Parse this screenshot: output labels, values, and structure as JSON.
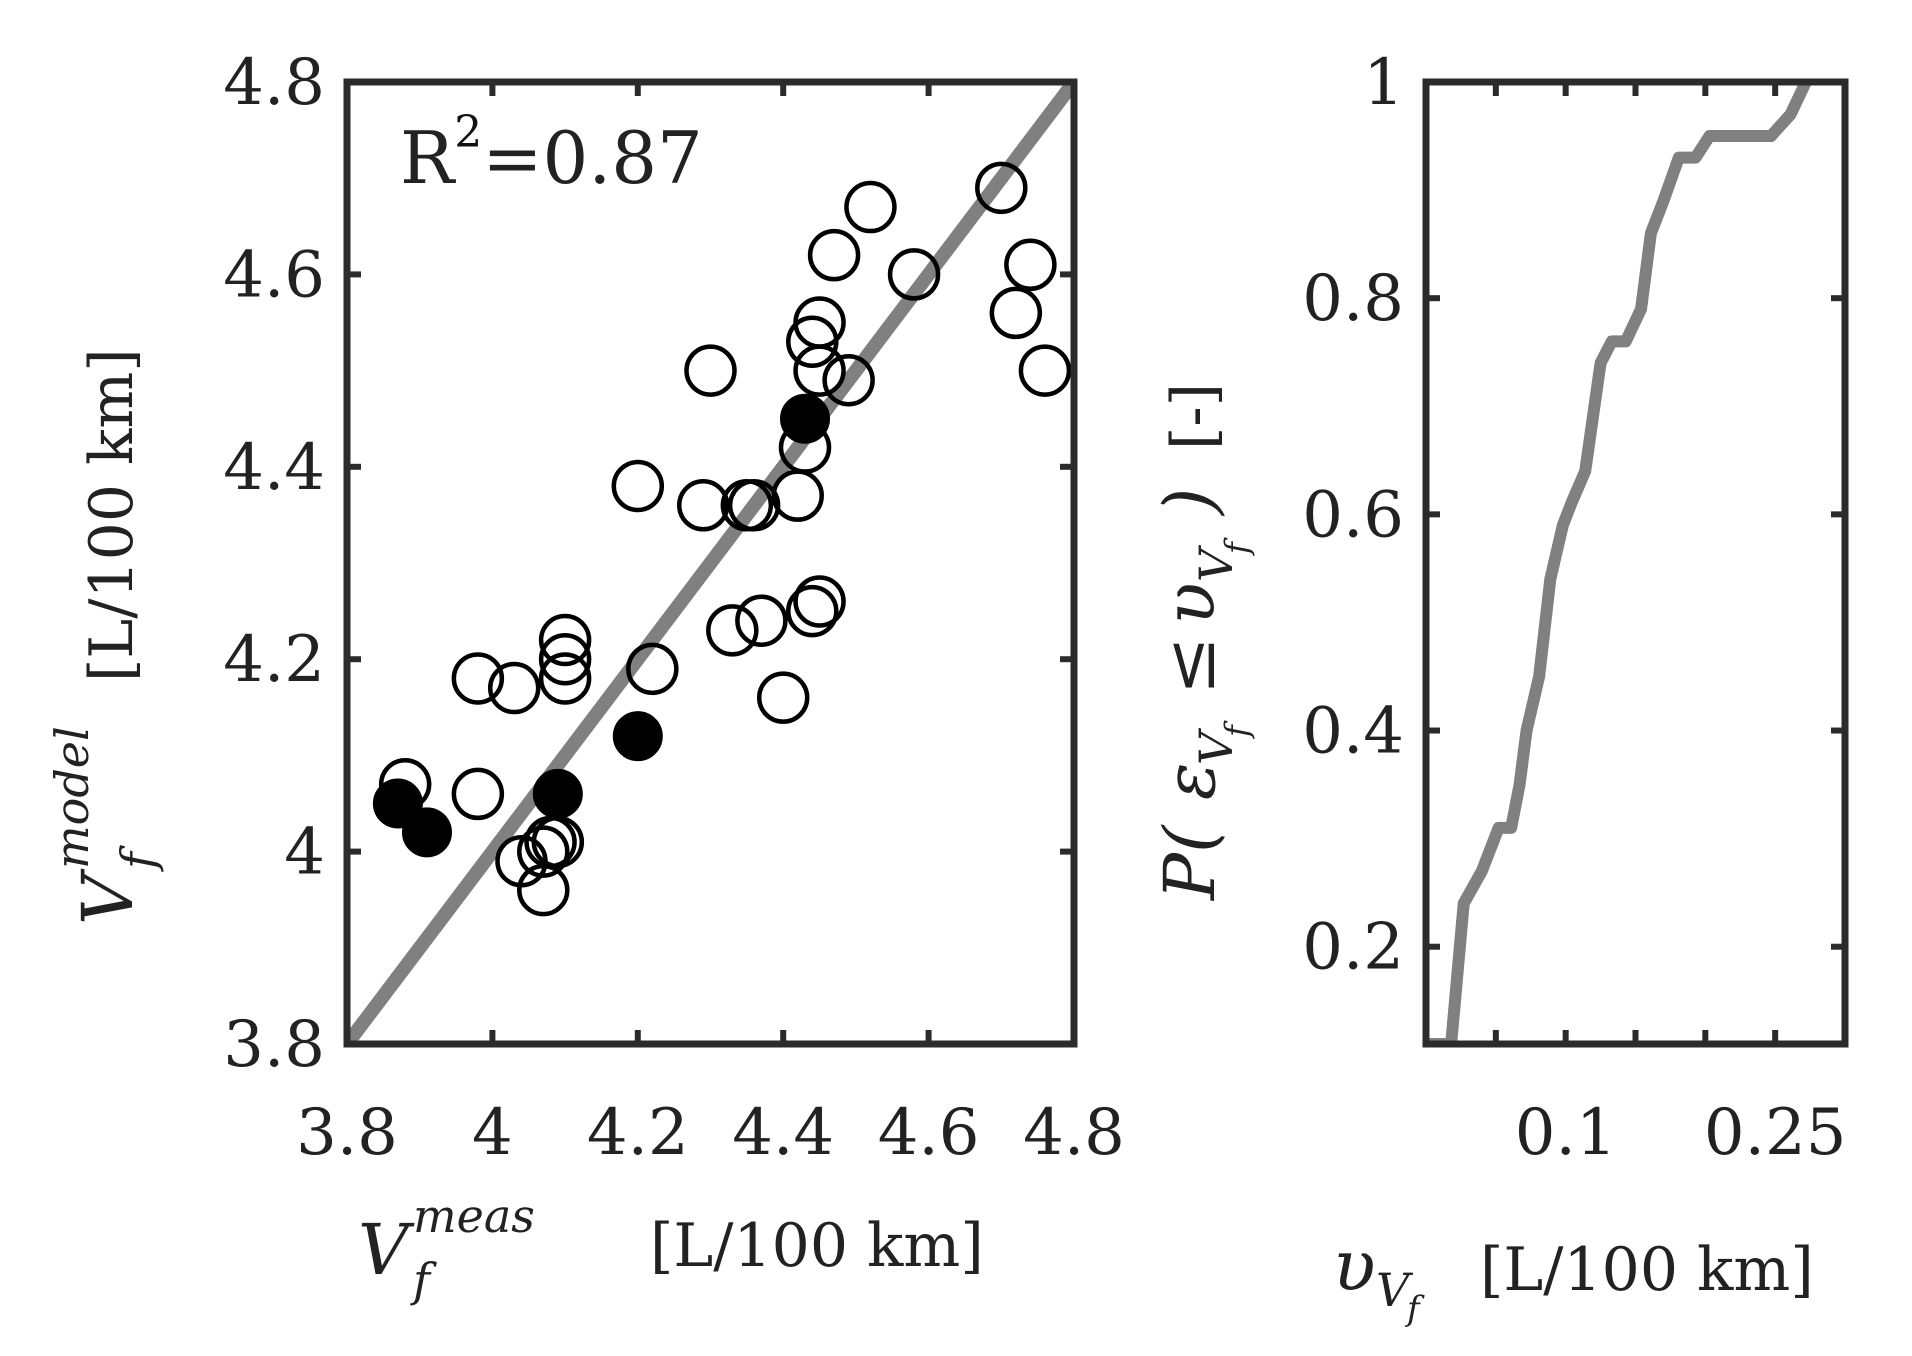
{
  "chart_data": [
    {
      "type": "scatter",
      "title": "",
      "xlabel": {
        "symbol": "V",
        "subscript": "f",
        "superscript": "meas",
        "units": "[L/100 km]"
      },
      "ylabel": {
        "symbol": "V",
        "subscript": "f",
        "superscript": "model",
        "units": "[L/100 km]"
      },
      "xlim": [
        3.8,
        4.8
      ],
      "ylim": [
        3.8,
        4.8
      ],
      "xticks": [
        "3.8",
        "4",
        "4.2",
        "4.4",
        "4.6",
        "4.8"
      ],
      "yticks": [
        "3.8",
        "4",
        "4.2",
        "4.4",
        "4.6",
        "4.8"
      ],
      "grid": false,
      "annotation": {
        "base": "R",
        "sup": "2",
        "rest": "=0.87"
      },
      "reference_line": {
        "label": "y = x",
        "from": [
          3.8,
          3.8
        ],
        "to": [
          4.8,
          4.8
        ],
        "color": "#808080"
      },
      "series": [
        {
          "name": "open",
          "marker": "open-circle",
          "points": [
            [
              3.88,
              4.07
            ],
            [
              3.98,
              4.18
            ],
            [
              4.03,
              4.17
            ],
            [
              3.98,
              4.06
            ],
            [
              4.04,
              3.99
            ],
            [
              4.07,
              3.96
            ],
            [
              4.07,
              4.0
            ],
            [
              4.08,
              4.01
            ],
            [
              4.09,
              4.01
            ],
            [
              4.1,
              4.22
            ],
            [
              4.1,
              4.2
            ],
            [
              4.1,
              4.18
            ],
            [
              4.2,
              4.38
            ],
            [
              4.22,
              4.19
            ],
            [
              4.29,
              4.36
            ],
            [
              4.3,
              4.5
            ],
            [
              4.33,
              4.23
            ],
            [
              4.35,
              4.36
            ],
            [
              4.36,
              4.36
            ],
            [
              4.37,
              4.24
            ],
            [
              4.4,
              4.16
            ],
            [
              4.42,
              4.37
            ],
            [
              4.43,
              4.42
            ],
            [
              4.44,
              4.25
            ],
            [
              4.45,
              4.26
            ],
            [
              4.44,
              4.53
            ],
            [
              4.45,
              4.55
            ],
            [
              4.45,
              4.5
            ],
            [
              4.47,
              4.62
            ],
            [
              4.49,
              4.49
            ],
            [
              4.52,
              4.67
            ],
            [
              4.58,
              4.6
            ],
            [
              4.7,
              4.69
            ],
            [
              4.72,
              4.56
            ],
            [
              4.74,
              4.61
            ],
            [
              4.76,
              4.5
            ]
          ]
        },
        {
          "name": "filled",
          "marker": "filled-circle",
          "points": [
            [
              3.87,
              4.05
            ],
            [
              3.91,
              4.02
            ],
            [
              4.09,
              4.06
            ],
            [
              4.2,
              4.12
            ],
            [
              4.43,
              4.45
            ]
          ]
        }
      ]
    },
    {
      "type": "line",
      "title": "",
      "xlabel": {
        "symbol": "υ",
        "subscript": "V",
        "subsubscript": "f",
        "units": "[L/100 km]"
      },
      "ylabel": {
        "text_start": "P(",
        "epsilon": "ε",
        "sub": "V",
        "subsub": "f",
        "leq": "≤",
        "upsilon": "υ",
        "text_end": ")",
        "units": "[-]"
      },
      "xlim": [
        0,
        0.3
      ],
      "ylim": [
        0.11,
        1
      ],
      "xticks": [
        "0.1",
        "0.25"
      ],
      "xtick_values": [
        0.1,
        0.25
      ],
      "yticks": [
        "0.2",
        "0.4",
        "0.6",
        "0.8",
        "1"
      ],
      "ytick_values": [
        0.2,
        0.4,
        0.6,
        0.8,
        1
      ],
      "grid": false,
      "series": [
        {
          "name": "empirical CDF",
          "color": "#808080",
          "x": [
            0.0,
            0.018,
            0.027,
            0.04,
            0.052,
            0.061,
            0.067,
            0.072,
            0.081,
            0.089,
            0.098,
            0.104,
            0.114,
            0.125,
            0.133,
            0.143,
            0.154,
            0.161,
            0.17,
            0.181,
            0.193,
            0.203,
            0.211,
            0.228,
            0.238,
            0.247,
            0.261,
            0.272
          ],
          "y": [
            0.11,
            0.11,
            0.24,
            0.27,
            0.31,
            0.31,
            0.35,
            0.4,
            0.45,
            0.54,
            0.59,
            0.61,
            0.64,
            0.74,
            0.76,
            0.76,
            0.79,
            0.86,
            0.89,
            0.93,
            0.93,
            0.95,
            0.95,
            0.95,
            0.95,
            0.95,
            0.97,
            1.0
          ]
        }
      ]
    }
  ]
}
